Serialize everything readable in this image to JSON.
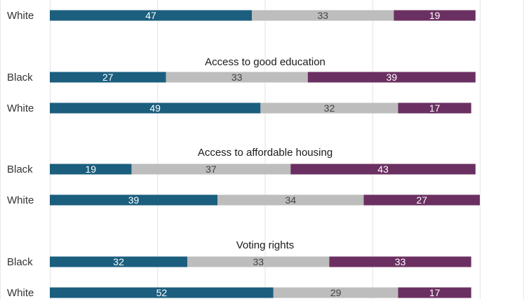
{
  "chart_data": {
    "type": "bar",
    "orientation": "horizontal",
    "stacked": true,
    "xlim": [
      0,
      100
    ],
    "grid": true,
    "colors": [
      "#1b5e7e",
      "#bdbdbd",
      "#6b3062"
    ],
    "groups": [
      {
        "title": "",
        "rows": [
          {
            "label": "White",
            "values": [
              47,
              33,
              19
            ]
          }
        ]
      },
      {
        "title": "Access to good education",
        "rows": [
          {
            "label": "Black",
            "values": [
              27,
              33,
              39
            ]
          },
          {
            "label": "White",
            "values": [
              49,
              32,
              17
            ]
          }
        ]
      },
      {
        "title": "Access to affordable housing",
        "rows": [
          {
            "label": "Black",
            "values": [
              19,
              37,
              43
            ]
          },
          {
            "label": "White",
            "values": [
              39,
              34,
              27
            ]
          }
        ]
      },
      {
        "title": "Voting rights",
        "rows": [
          {
            "label": "Black",
            "values": [
              32,
              33,
              33
            ]
          },
          {
            "label": "White",
            "values": [
              52,
              29,
              17
            ]
          }
        ]
      }
    ]
  }
}
